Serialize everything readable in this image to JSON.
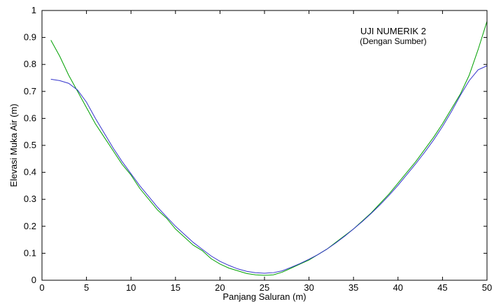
{
  "chart_data": {
    "type": "line",
    "title": "",
    "xlabel": "Panjang Saluran (m)",
    "ylabel": "Elevasi Muka Air (m)",
    "xlim": [
      0,
      50
    ],
    "ylim": [
      0,
      1
    ],
    "x_ticks": [
      0,
      5,
      10,
      15,
      20,
      25,
      30,
      35,
      40,
      45,
      50
    ],
    "y_ticks": [
      0,
      0.1,
      0.2,
      0.3,
      0.4,
      0.5,
      0.6,
      0.7,
      0.8,
      0.9,
      1
    ],
    "grid": false,
    "annotations": [
      "UJI NUMERIK 2",
      "(Dengan Sumber)"
    ],
    "colors": {
      "series_1": "#00a000",
      "series_2": "#3333cc",
      "axis": "#000000"
    },
    "series": [
      {
        "x": [
          1,
          2,
          3,
          4,
          5,
          6,
          7,
          8,
          9,
          10,
          11,
          12,
          13,
          14,
          15,
          16,
          17,
          18,
          19,
          20,
          21,
          22,
          23,
          24,
          25,
          26,
          27,
          28,
          29,
          30,
          31,
          32,
          33,
          34,
          35,
          36,
          37,
          38,
          39,
          40,
          41,
          42,
          43,
          44,
          45,
          46,
          47,
          48,
          49,
          50
        ],
        "values": [
          0.89,
          0.83,
          0.76,
          0.7,
          0.64,
          0.58,
          0.53,
          0.48,
          0.43,
          0.39,
          0.34,
          0.3,
          0.26,
          0.23,
          0.19,
          0.16,
          0.13,
          0.11,
          0.08,
          0.06,
          0.045,
          0.035,
          0.025,
          0.02,
          0.018,
          0.02,
          0.03,
          0.045,
          0.06,
          0.075,
          0.095,
          0.115,
          0.14,
          0.165,
          0.19,
          0.22,
          0.25,
          0.285,
          0.32,
          0.36,
          0.4,
          0.44,
          0.485,
          0.53,
          0.58,
          0.635,
          0.69,
          0.76,
          0.855,
          0.96
        ]
      },
      {
        "x": [
          1,
          2,
          3,
          4,
          5,
          6,
          7,
          8,
          9,
          10,
          11,
          12,
          13,
          14,
          15,
          16,
          17,
          18,
          19,
          20,
          21,
          22,
          23,
          24,
          25,
          26,
          27,
          28,
          29,
          30,
          31,
          32,
          33,
          34,
          35,
          36,
          37,
          38,
          39,
          40,
          41,
          42,
          43,
          44,
          45,
          46,
          47,
          48,
          49,
          50
        ],
        "values": [
          0.745,
          0.74,
          0.73,
          0.705,
          0.66,
          0.6,
          0.545,
          0.49,
          0.44,
          0.395,
          0.35,
          0.31,
          0.27,
          0.235,
          0.2,
          0.17,
          0.14,
          0.115,
          0.09,
          0.07,
          0.055,
          0.042,
          0.033,
          0.028,
          0.026,
          0.028,
          0.035,
          0.048,
          0.062,
          0.078,
          0.095,
          0.115,
          0.138,
          0.163,
          0.19,
          0.218,
          0.248,
          0.28,
          0.315,
          0.352,
          0.392,
          0.432,
          0.475,
          0.52,
          0.57,
          0.625,
          0.685,
          0.74,
          0.78,
          0.795
        ]
      }
    ]
  }
}
